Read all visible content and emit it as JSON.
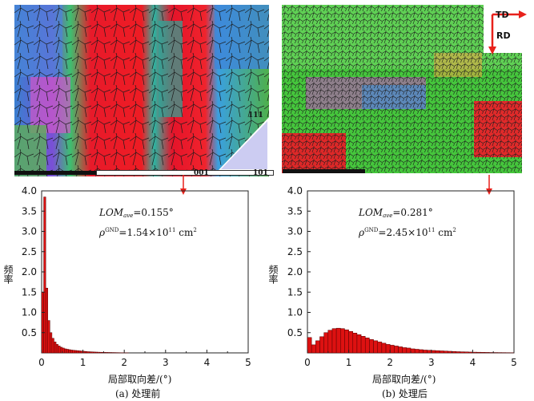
{
  "panels": [
    {
      "caption": "(a) 处理前",
      "annotation_lom_label": "LOM",
      "annotation_lom_sub": "ave",
      "annotation_lom_value": "=0.155°",
      "annotation_rho_label": "ρ",
      "annotation_rho_sup": "GND",
      "annotation_rho_value": "=1.54×10",
      "annotation_rho_exp": "11",
      "annotation_rho_unit": " cm",
      "annotation_rho_unit_exp": "2",
      "ipf_labels": [
        "111",
        "001",
        "101"
      ]
    },
    {
      "caption": "(b) 处理后",
      "annotation_lom_label": "LOM",
      "annotation_lom_sub": "ave",
      "annotation_lom_value": "=0.281°",
      "annotation_rho_label": "ρ",
      "annotation_rho_sup": "GND",
      "annotation_rho_value": "=2.45×10",
      "annotation_rho_exp": "11",
      "annotation_rho_unit": " cm",
      "annotation_rho_unit_exp": "2",
      "coord_td": "TD",
      "coord_rd": "RD"
    }
  ],
  "colors": {
    "bar_fill": "#dd1111",
    "bar_stroke": "#550000",
    "arrow": "#e8211b"
  },
  "chart_data": [
    {
      "type": "bar",
      "title": "",
      "xlabel": "局部取向差/(°)",
      "ylabel": "频率",
      "xlim": [
        0,
        5
      ],
      "ylim": [
        0,
        4.0
      ],
      "xticks": [
        "0",
        "1",
        "2",
        "3",
        "4",
        "5"
      ],
      "yticks": [
        "0.5",
        "1.0",
        "1.5",
        "2.0",
        "2.5",
        "3.0",
        "3.5",
        "4.0"
      ],
      "bin_width": 0.05,
      "bin_start": 0.0,
      "values": [
        1.5,
        3.85,
        1.6,
        0.8,
        0.5,
        0.36,
        0.27,
        0.21,
        0.17,
        0.14,
        0.12,
        0.1,
        0.09,
        0.08,
        0.07,
        0.065,
        0.06,
        0.055,
        0.05,
        0.045,
        0.04,
        0.035,
        0.03,
        0.028,
        0.025,
        0.022,
        0.02,
        0.018,
        0.016,
        0.015,
        0.013,
        0.012,
        0.011,
        0.01,
        0.009,
        0.008,
        0.007,
        0.006,
        0.005,
        0.004,
        0.003,
        0.002
      ]
    },
    {
      "type": "bar",
      "title": "",
      "xlabel": "局部取向差/(°)",
      "ylabel": "频率",
      "xlim": [
        0,
        5
      ],
      "ylim": [
        0,
        4.0
      ],
      "xticks": [
        "0",
        "1",
        "2",
        "3",
        "4",
        "5"
      ],
      "yticks": [
        "0.5",
        "1.0",
        "1.5",
        "2.0",
        "2.5",
        "3.0",
        "3.5",
        "4.0"
      ],
      "bin_width": 0.1,
      "bin_start": 0.0,
      "values": [
        0.38,
        0.2,
        0.3,
        0.4,
        0.5,
        0.56,
        0.6,
        0.61,
        0.6,
        0.57,
        0.53,
        0.49,
        0.45,
        0.41,
        0.37,
        0.33,
        0.3,
        0.27,
        0.24,
        0.21,
        0.19,
        0.17,
        0.15,
        0.13,
        0.12,
        0.1,
        0.09,
        0.08,
        0.07,
        0.065,
        0.06,
        0.055,
        0.05,
        0.045,
        0.04,
        0.035,
        0.03,
        0.027,
        0.024,
        0.021,
        0.018,
        0.016,
        0.014,
        0.012,
        0.01,
        0.009,
        0.008,
        0.007,
        0.006,
        0.005
      ]
    }
  ]
}
